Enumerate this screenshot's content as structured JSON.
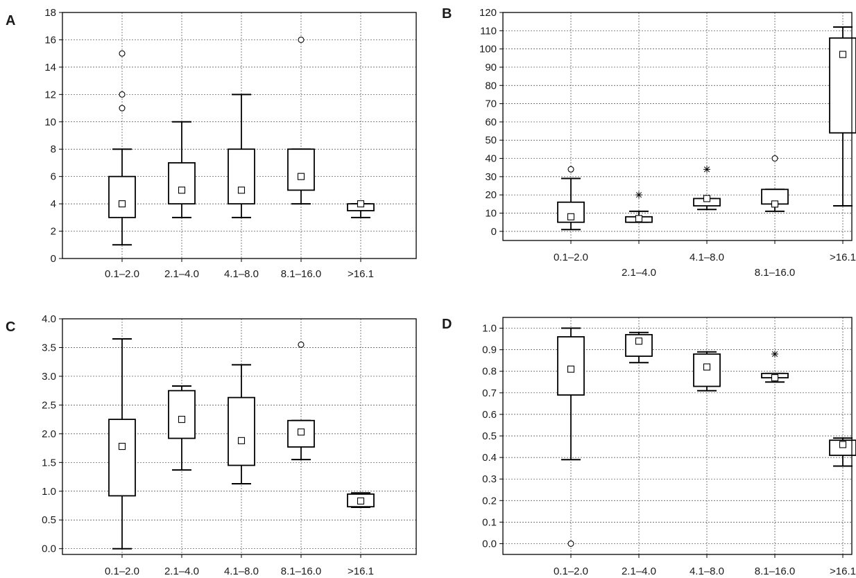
{
  "chart_data": [
    {
      "panel": "A",
      "type": "boxplot",
      "categories": [
        "0.1–2.0",
        "2.1–4.0",
        "4.1–8.0",
        "8.1–16.0",
        ">16.1"
      ],
      "ylim": [
        0,
        18
      ],
      "yticks": [
        "0",
        "2",
        "4",
        "6",
        "8",
        "10",
        "12",
        "14",
        "16",
        "18"
      ],
      "grid": true,
      "boxes": [
        {
          "min": 1,
          "q1": 3,
          "median": 4,
          "q3": 6,
          "max": 8,
          "outliers": [
            11,
            12,
            15
          ],
          "extremes": []
        },
        {
          "min": 3,
          "q1": 4,
          "median": 5,
          "q3": 7,
          "max": 10,
          "outliers": [],
          "extremes": []
        },
        {
          "min": 3,
          "q1": 4,
          "median": 5,
          "q3": 8,
          "max": 12,
          "outliers": [],
          "extremes": []
        },
        {
          "min": 4,
          "q1": 5,
          "median": 6,
          "q3": 8,
          "max": 8,
          "outliers": [
            16
          ],
          "extremes": []
        },
        {
          "min": 3,
          "q1": 3.5,
          "median": 4,
          "q3": 4,
          "max": 4,
          "outliers": [],
          "extremes": []
        }
      ]
    },
    {
      "panel": "B",
      "type": "boxplot",
      "categories": [
        "0.1–2.0",
        "2.1–4.0",
        "4.1–8.0",
        "8.1–16.0",
        ">16.1"
      ],
      "ylim": [
        -5,
        120
      ],
      "yticks": [
        "0",
        "10",
        "20",
        "30",
        "40",
        "50",
        "60",
        "70",
        "80",
        "90",
        "100",
        "110",
        "120"
      ],
      "grid": true,
      "boxes": [
        {
          "min": 1,
          "q1": 5,
          "median": 8,
          "q3": 16,
          "max": 29,
          "outliers": [
            34
          ],
          "extremes": []
        },
        {
          "min": 5,
          "q1": 5,
          "median": 7,
          "q3": 8,
          "max": 11,
          "outliers": [],
          "extremes": [
            20
          ]
        },
        {
          "min": 12,
          "q1": 14,
          "median": 18,
          "q3": 18,
          "max": 18,
          "outliers": [],
          "extremes": [
            34
          ]
        },
        {
          "min": 11,
          "q1": 15,
          "median": 15,
          "q3": 23,
          "max": 23,
          "outliers": [
            40
          ],
          "extremes": []
        },
        {
          "min": 14,
          "q1": 54,
          "median": 97,
          "q3": 106,
          "max": 112,
          "outliers": [],
          "extremes": []
        }
      ]
    },
    {
      "panel": "C",
      "type": "boxplot",
      "categories": [
        "0.1–2.0",
        "2.1–4.0",
        "4.1–8.0",
        "8.1–16.0",
        ">16.1"
      ],
      "ylim": [
        -0.1,
        4.0
      ],
      "yticks": [
        "0.0",
        "0.5",
        "1.0",
        "1.5",
        "2.0",
        "2.5",
        "3.0",
        "3.5",
        "4.0"
      ],
      "grid": true,
      "boxes": [
        {
          "min": 0.0,
          "q1": 0.92,
          "median": 1.78,
          "q3": 2.25,
          "max": 3.65,
          "outliers": [],
          "extremes": []
        },
        {
          "min": 1.37,
          "q1": 1.92,
          "median": 2.25,
          "q3": 2.75,
          "max": 2.83,
          "outliers": [],
          "extremes": []
        },
        {
          "min": 1.13,
          "q1": 1.45,
          "median": 1.88,
          "q3": 2.63,
          "max": 3.2,
          "outliers": [],
          "extremes": []
        },
        {
          "min": 1.55,
          "q1": 1.77,
          "median": 2.03,
          "q3": 2.23,
          "max": 2.23,
          "outliers": [
            3.55
          ],
          "extremes": []
        },
        {
          "min": 0.72,
          "q1": 0.73,
          "median": 0.83,
          "q3": 0.95,
          "max": 0.97,
          "outliers": [],
          "extremes": []
        }
      ]
    },
    {
      "panel": "D",
      "type": "boxplot",
      "categories": [
        "0.1–2.0",
        "2.1–4.0",
        "4.1–8.0",
        "8.1–16.0",
        ">16.1"
      ],
      "ylim": [
        -0.05,
        1.05
      ],
      "yticks": [
        "0.0",
        "0.1",
        "0.2",
        "0.3",
        "0.4",
        "0.5",
        "0.6",
        "0.7",
        "0.8",
        "0.9",
        "1.0"
      ],
      "grid": true,
      "boxes": [
        {
          "min": 0.39,
          "q1": 0.69,
          "median": 0.81,
          "q3": 0.96,
          "max": 1.0,
          "outliers": [
            0.0
          ],
          "extremes": []
        },
        {
          "min": 0.84,
          "q1": 0.87,
          "median": 0.94,
          "q3": 0.97,
          "max": 0.98,
          "outliers": [],
          "extremes": []
        },
        {
          "min": 0.71,
          "q1": 0.73,
          "median": 0.82,
          "q3": 0.88,
          "max": 0.89,
          "outliers": [],
          "extremes": []
        },
        {
          "min": 0.75,
          "q1": 0.77,
          "median": 0.77,
          "q3": 0.79,
          "max": 0.79,
          "outliers": [],
          "extremes": [
            0.88
          ]
        },
        {
          "min": 0.36,
          "q1": 0.41,
          "median": 0.46,
          "q3": 0.48,
          "max": 0.49,
          "outliers": [],
          "extremes": []
        }
      ]
    }
  ]
}
